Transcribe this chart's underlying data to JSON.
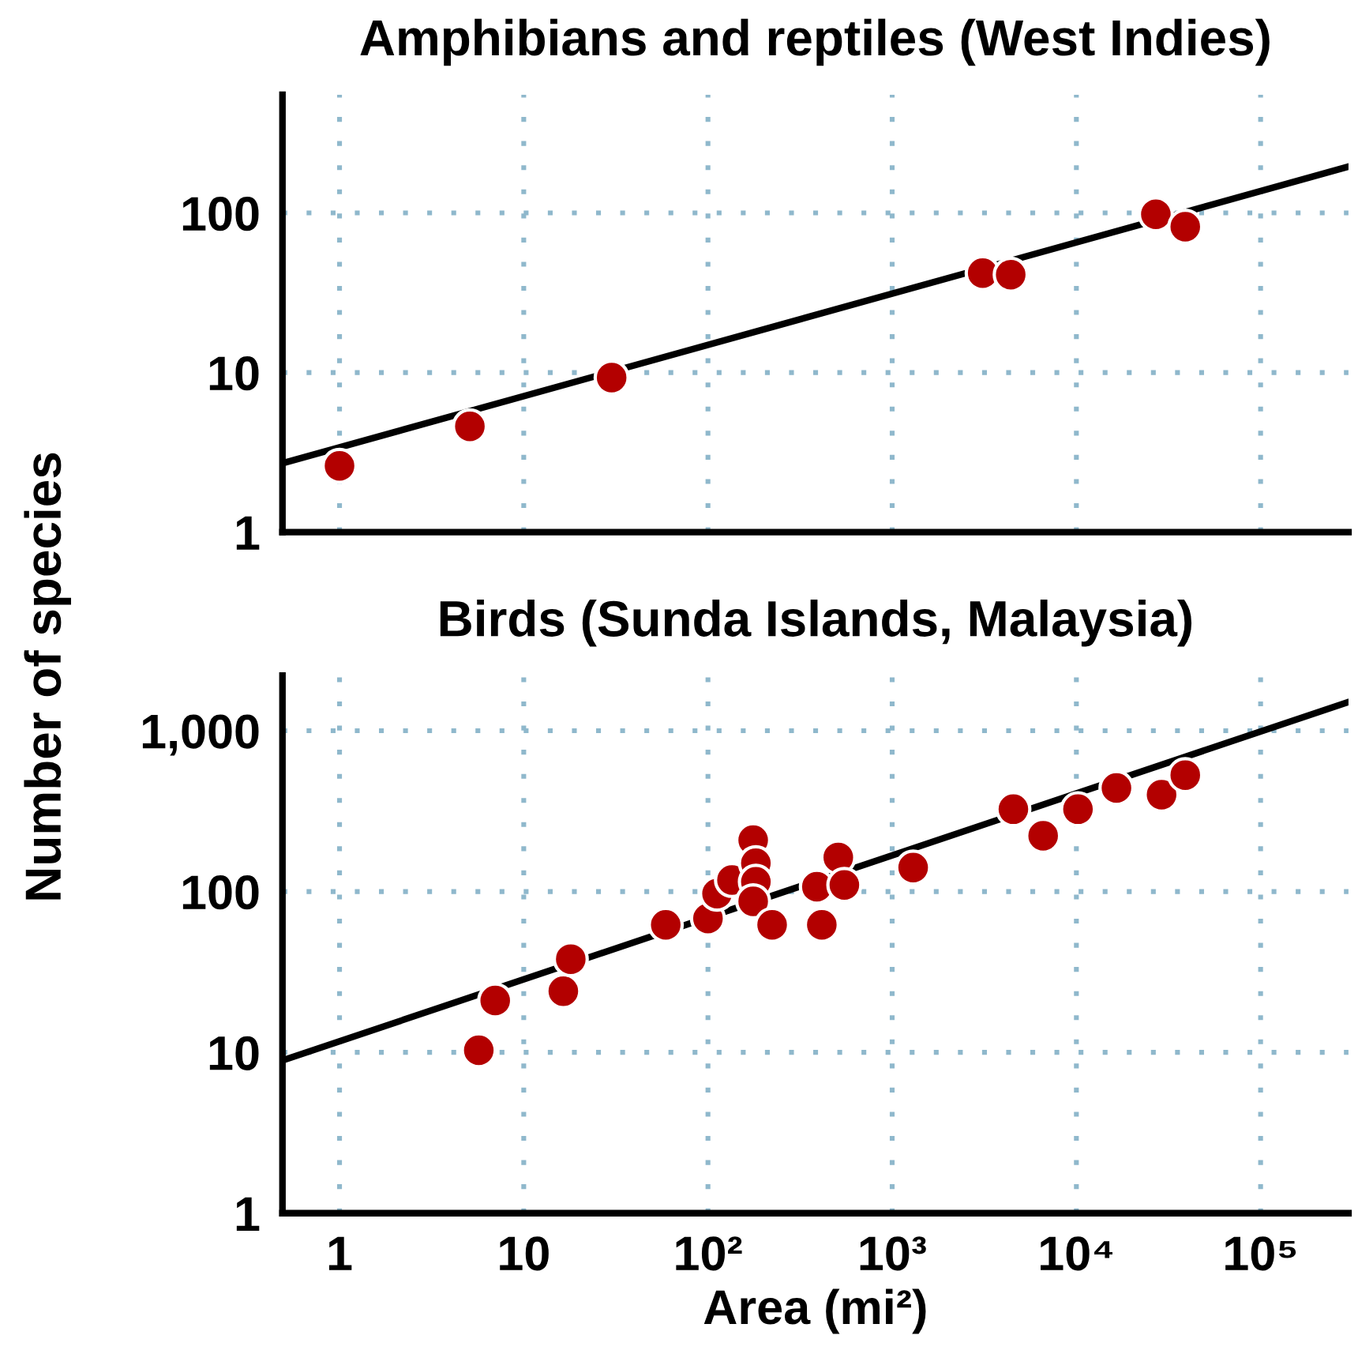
{
  "chart_data": [
    {
      "type": "scatter",
      "title": "Amphibians and reptiles (West Indies)",
      "log": "xy",
      "grid": true,
      "marker": "circle",
      "tick_labels": "y",
      "xlim": [
        0.49,
        300000
      ],
      "ylim": [
        1,
        550
      ],
      "xticks": [
        {
          "value": 1,
          "label": null
        },
        {
          "value": 10,
          "label": null
        },
        {
          "value": 100,
          "label": null
        },
        {
          "value": 1000,
          "label": null
        },
        {
          "value": 10000,
          "label": null
        },
        {
          "value": 100000,
          "label": null
        }
      ],
      "yticks": [
        1,
        10,
        100
      ],
      "series": [
        {
          "color": "#b30000",
          "x": [
            1,
            5.1,
            30,
            3100,
            4400,
            27000,
            39000
          ],
          "values": [
            2.6,
            4.6,
            9.3,
            42,
            41,
            98,
            82
          ]
        },
        {
          "type": "line",
          "color": "#000000",
          "marker": "none",
          "x": [
            0.49,
            300000
          ],
          "values": [
            2.7,
            195
          ]
        }
      ]
    },
    {
      "type": "scatter",
      "title": "Birds (Sunda Islands, Malaysia)",
      "xlabel": "Area (mi²)",
      "ylabel": "Number of species",
      "log": "xy",
      "grid": true,
      "marker": "circle",
      "xlim": [
        0.49,
        300000
      ],
      "ylim": [
        1,
        2200
      ],
      "xticks": [
        1,
        10,
        {
          "value": 100,
          "label": "10²"
        },
        {
          "value": 1000,
          "label": "10³"
        },
        {
          "value": 10000,
          "label": "10⁴"
        },
        {
          "value": 100000,
          "label": "10⁵"
        }
      ],
      "yticks": [
        1,
        10,
        100,
        {
          "value": 1000,
          "label": "1,000"
        }
      ],
      "series": [
        {
          "color": "#b30000",
          "x": [
            5.7,
            7.0,
            16.4,
            18,
            59,
            100,
            112,
            135,
            176,
            182,
            182,
            176,
            223,
            390,
            415,
            510,
            550,
            1300,
            4550,
            6600,
            10200,
            16500,
            29000,
            39000
          ],
          "values": [
            10.3,
            21,
            24,
            38,
            62,
            68,
            97,
            118,
            209,
            150,
            115,
            87,
            62,
            107,
            62,
            163,
            110,
            141,
            325,
            222,
            325,
            440,
            400,
            530
          ]
        },
        {
          "type": "line",
          "color": "#000000",
          "marker": "none",
          "x": [
            0.49,
            300000
          ],
          "values": [
            8.9,
            1510
          ]
        }
      ]
    }
  ]
}
